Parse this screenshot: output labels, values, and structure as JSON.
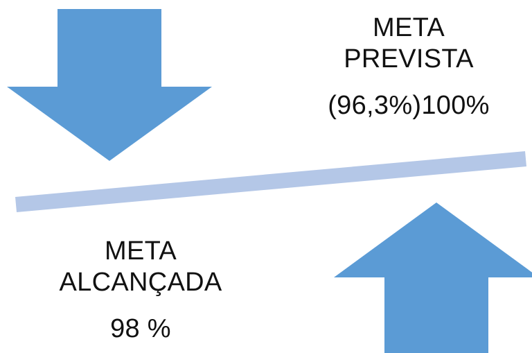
{
  "planned_goal": {
    "title_line1": "META",
    "title_line2": "PREVISTA",
    "value": "(96,3%)100%"
  },
  "achieved_goal": {
    "title_line1": "META",
    "title_line2": "ALCANÇADA",
    "value": "98 %"
  },
  "colors": {
    "arrow_fill": "#5b9bd5",
    "balance_bar": "#b4c7e7",
    "text": "#111111",
    "background": "#ffffff"
  },
  "icons": {
    "down_arrow": "arrow-down-icon",
    "up_arrow": "arrow-up-icon"
  }
}
